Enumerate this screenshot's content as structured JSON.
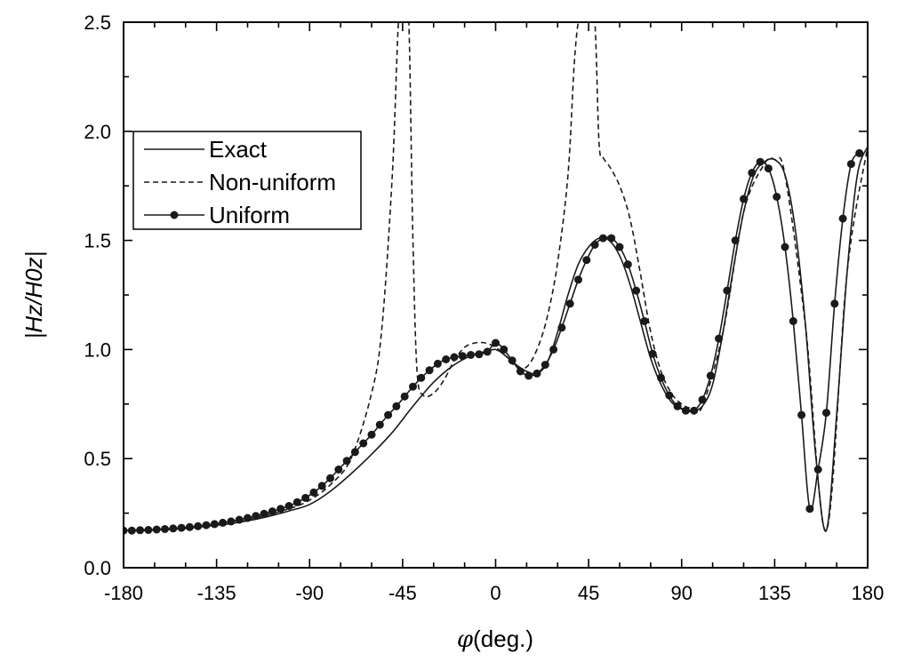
{
  "chart_data": {
    "type": "line",
    "xlabel_symbol": "φ",
    "xlabel_text": "(deg.)",
    "ylabel": "|Hz/H0z|",
    "xlim": [
      -180,
      180
    ],
    "ylim": [
      0,
      2.5
    ],
    "x_ticks": [
      -180,
      -135,
      -90,
      -45,
      0,
      45,
      90,
      135,
      180
    ],
    "x_tick_labels": [
      "-180",
      "-135",
      "-90",
      "-45",
      "0",
      "45",
      "90",
      "135",
      "180"
    ],
    "y_ticks": [
      0,
      0.5,
      1,
      1.5,
      2,
      2.5
    ],
    "y_tick_labels": [
      "0.0",
      "0.5",
      "1.0",
      "1.5",
      "2.0",
      "2.5"
    ],
    "legend_position": "upper-left",
    "series": [
      {
        "name": "Exact",
        "style": "solid",
        "x": [
          -180,
          -170,
          -160,
          -150,
          -140,
          -130,
          -120,
          -110,
          -100,
          -90,
          -80,
          -70,
          -60,
          -50,
          -40,
          -30,
          -20,
          -10,
          -5,
          0,
          5,
          10,
          15,
          20,
          25,
          30,
          35,
          40,
          45,
          50,
          55,
          60,
          65,
          70,
          75,
          80,
          85,
          90,
          95,
          100,
          105,
          110,
          115,
          120,
          125,
          130,
          135,
          140,
          145,
          150,
          155,
          160,
          165,
          170,
          175,
          180
        ],
        "y": [
          0.17,
          0.17,
          0.175,
          0.18,
          0.19,
          0.2,
          0.215,
          0.235,
          0.26,
          0.29,
          0.35,
          0.43,
          0.52,
          0.62,
          0.74,
          0.85,
          0.93,
          0.98,
          0.99,
          1.0,
          0.97,
          0.93,
          0.9,
          0.89,
          0.94,
          1.08,
          1.25,
          1.39,
          1.47,
          1.51,
          1.5,
          1.43,
          1.3,
          1.13,
          0.96,
          0.84,
          0.76,
          0.73,
          0.72,
          0.74,
          0.84,
          1.08,
          1.37,
          1.63,
          1.8,
          1.86,
          1.87,
          1.8,
          1.55,
          1.1,
          0.5,
          0.17,
          0.7,
          1.35,
          1.8,
          1.93
        ]
      },
      {
        "name": "Non-uniform",
        "style": "dashed",
        "x": [
          -180,
          -160,
          -140,
          -120,
          -100,
          -90,
          -80,
          -70,
          -60,
          -55,
          -50,
          -47,
          -45,
          -44,
          -42,
          -40,
          -38,
          -35,
          -30,
          -25,
          -20,
          -15,
          -10,
          -5,
          0,
          5,
          10,
          15,
          20,
          25,
          30,
          35,
          38,
          40,
          42,
          45,
          48,
          50,
          52,
          55,
          60,
          65,
          70,
          75,
          80,
          85,
          90,
          95,
          100,
          110,
          120,
          130,
          135,
          140,
          150,
          160,
          170,
          180
        ],
        "y": [
          0.17,
          0.175,
          0.19,
          0.22,
          0.27,
          0.31,
          0.38,
          0.5,
          0.8,
          1.1,
          1.8,
          2.5,
          2.5,
          2.5,
          2.5,
          1.5,
          0.9,
          0.79,
          0.8,
          0.86,
          0.95,
          1.01,
          1.03,
          1.03,
          1.01,
          0.97,
          0.92,
          0.92,
          1.0,
          1.15,
          1.4,
          1.8,
          2.3,
          2.5,
          2.5,
          2.5,
          2.5,
          1.95,
          1.88,
          1.84,
          1.75,
          1.6,
          1.35,
          1.08,
          0.9,
          0.8,
          0.75,
          0.73,
          0.74,
          1.08,
          1.63,
          1.85,
          1.87,
          1.8,
          1.1,
          0.17,
          1.35,
          1.93
        ]
      },
      {
        "name": "Uniform",
        "style": "solid-with-markers",
        "x": [
          -180,
          -176,
          -172,
          -168,
          -164,
          -160,
          -156,
          -152,
          -148,
          -144,
          -140,
          -136,
          -132,
          -128,
          -124,
          -120,
          -116,
          -112,
          -108,
          -104,
          -100,
          -96,
          -92,
          -88,
          -84,
          -80,
          -76,
          -72,
          -68,
          -64,
          -60,
          -56,
          -52,
          -48,
          -44,
          -40,
          -36,
          -32,
          -28,
          -24,
          -20,
          -16,
          -12,
          -8,
          -4,
          0,
          4,
          8,
          12,
          16,
          20,
          24,
          28,
          32,
          36,
          40,
          44,
          48,
          52,
          56,
          60,
          64,
          68,
          72,
          76,
          80,
          84,
          88,
          92,
          96,
          100,
          104,
          108,
          112,
          116,
          120,
          124,
          128,
          132,
          136,
          140,
          144,
          148,
          152,
          156,
          160,
          164,
          168,
          172,
          176
        ],
        "y": [
          0.17,
          0.17,
          0.172,
          0.173,
          0.175,
          0.177,
          0.18,
          0.183,
          0.186,
          0.19,
          0.195,
          0.2,
          0.206,
          0.212,
          0.22,
          0.228,
          0.237,
          0.247,
          0.258,
          0.27,
          0.283,
          0.3,
          0.32,
          0.345,
          0.375,
          0.41,
          0.45,
          0.49,
          0.53,
          0.57,
          0.61,
          0.655,
          0.7,
          0.74,
          0.785,
          0.83,
          0.87,
          0.905,
          0.935,
          0.955,
          0.965,
          0.97,
          0.975,
          0.978,
          0.99,
          1.03,
          1.0,
          0.95,
          0.9,
          0.88,
          0.89,
          0.93,
          1.0,
          1.1,
          1.21,
          1.32,
          1.41,
          1.48,
          1.51,
          1.51,
          1.47,
          1.39,
          1.27,
          1.13,
          0.98,
          0.87,
          0.79,
          0.74,
          0.72,
          0.72,
          0.77,
          0.88,
          1.05,
          1.27,
          1.5,
          1.69,
          1.81,
          1.86,
          1.83,
          1.7,
          1.47,
          1.13,
          0.7,
          0.27,
          0.45,
          0.71,
          1.21,
          1.6,
          1.85,
          1.9
        ]
      }
    ]
  },
  "colors": {
    "line": "#1a1a1a",
    "axis": "#000000",
    "background": "#ffffff"
  }
}
